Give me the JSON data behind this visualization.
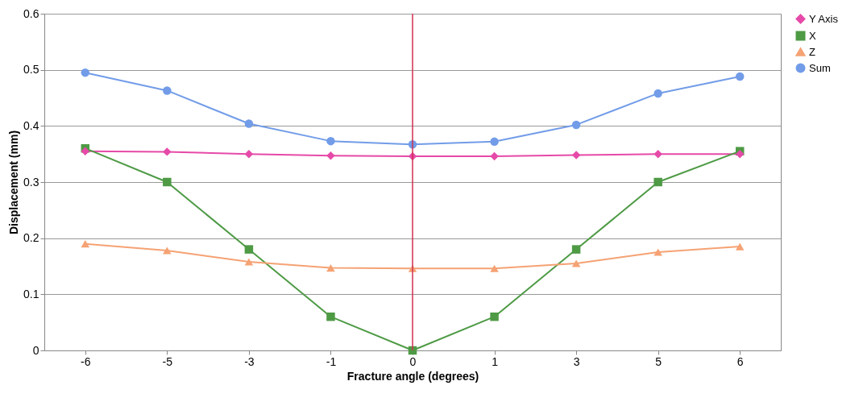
{
  "chart_data": {
    "type": "line",
    "xlabel": "Fracture angle (degrees)",
    "ylabel": "Displacement (mm)",
    "categories": [
      "-6",
      "-5",
      "-3",
      "-1",
      "0",
      "1",
      "3",
      "5",
      "6"
    ],
    "ylim": [
      0,
      0.6
    ],
    "yticks": [
      0,
      0.1,
      0.2,
      0.3,
      0.4,
      0.5,
      0.6
    ],
    "grid": "y",
    "legend": "right",
    "series": [
      {
        "name": "Y Axis",
        "color": "#e64aa8",
        "marker": "diamond",
        "values": [
          0.355,
          0.354,
          0.35,
          0.347,
          0.346,
          0.346,
          0.348,
          0.35,
          0.35
        ]
      },
      {
        "name": "X",
        "color": "#4e9a45",
        "marker": "square",
        "values": [
          0.36,
          0.3,
          0.18,
          0.06,
          0.0,
          0.06,
          0.18,
          0.3,
          0.355
        ]
      },
      {
        "name": "Z",
        "color": "#f5a274",
        "marker": "triangle",
        "values": [
          0.19,
          0.178,
          0.158,
          0.147,
          0.146,
          0.146,
          0.155,
          0.175,
          0.185
        ]
      },
      {
        "name": "Sum",
        "color": "#729ce8",
        "marker": "circle",
        "values": [
          0.495,
          0.463,
          0.404,
          0.373,
          0.367,
          0.372,
          0.402,
          0.458,
          0.488
        ]
      }
    ],
    "ref_lines": [
      {
        "axis": "x",
        "value": "0",
        "color": "#d03050"
      }
    ]
  }
}
